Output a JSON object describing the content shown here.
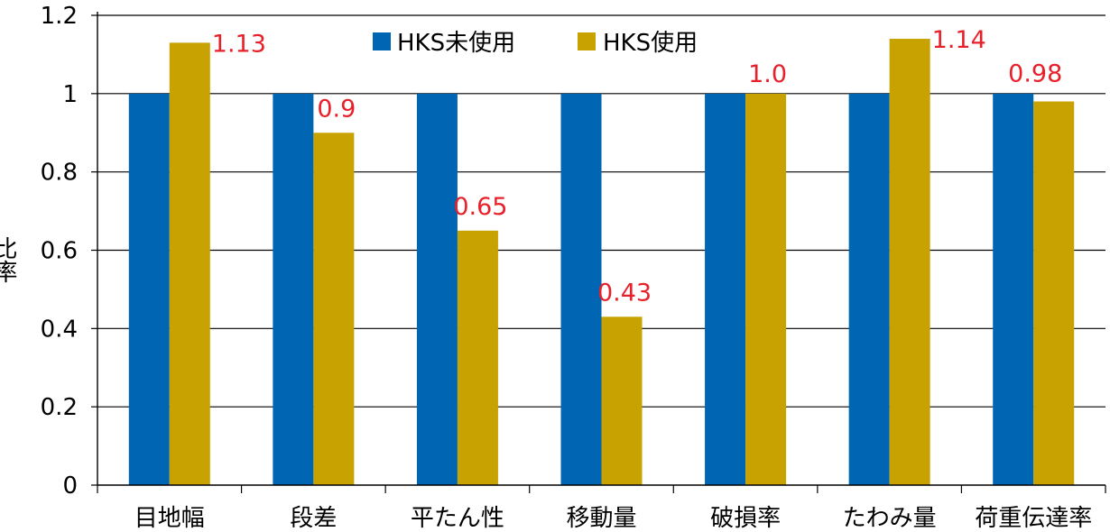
{
  "chart_data": {
    "type": "bar",
    "title": "",
    "xlabel": "",
    "ylabel": "比率",
    "ylim": [
      0,
      1.2
    ],
    "yticks": [
      0,
      0.2,
      0.4,
      0.6,
      0.8,
      1,
      1.2
    ],
    "ytick_labels": [
      "0",
      "0.2",
      "0.4",
      "0.6",
      "0.8",
      "1",
      "1.2"
    ],
    "grid": true,
    "legend_position": "top-center",
    "categories": [
      "目地幅",
      "段差",
      "平たん性",
      "移動量",
      "破損率",
      "たわみ量",
      "荷重伝達率"
    ],
    "series": [
      {
        "name": "HKS未使用",
        "color": "#0066b3",
        "values": [
          1,
          1,
          1,
          1,
          1,
          1,
          1
        ]
      },
      {
        "name": "HKS使用",
        "color": "#c8a200",
        "values": [
          1.13,
          0.9,
          0.65,
          0.43,
          1.0,
          1.14,
          0.98
        ],
        "labels": [
          "1.13",
          "0.9",
          "0.65",
          "0.43",
          "1.0",
          "1.14",
          "0.98"
        ],
        "label_color": "#e8202a"
      }
    ]
  }
}
